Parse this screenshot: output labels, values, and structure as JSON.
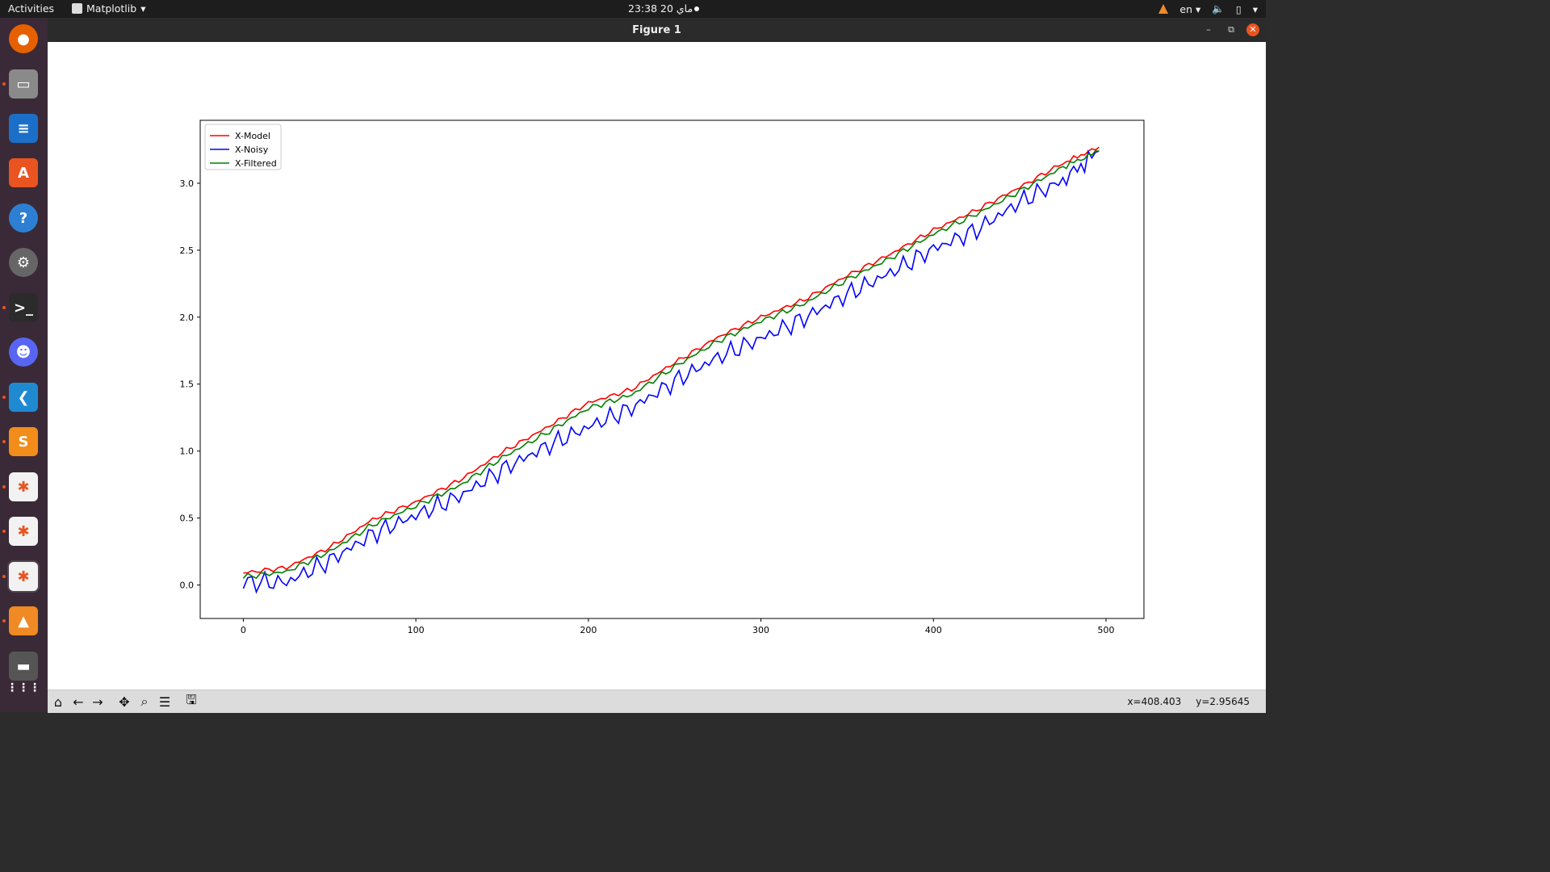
{
  "topbar": {
    "activities": "Activities",
    "app_name": "Matplotlib",
    "clock": "ماي 20  23:38",
    "language": "en"
  },
  "dock": {
    "items": [
      {
        "name": "firefox-icon"
      },
      {
        "name": "files-icon"
      },
      {
        "name": "writer-icon"
      },
      {
        "name": "software-center-icon"
      },
      {
        "name": "help-icon"
      },
      {
        "name": "settings-icon"
      },
      {
        "name": "terminal-icon"
      },
      {
        "name": "discord-icon"
      },
      {
        "name": "vscode-icon"
      },
      {
        "name": "sublime-icon"
      },
      {
        "name": "python-figure-icon"
      },
      {
        "name": "python-figure-icon"
      },
      {
        "name": "python-figure-icon"
      },
      {
        "name": "vlc-icon"
      },
      {
        "name": "drive-icon"
      },
      {
        "name": "app-grid-icon"
      }
    ]
  },
  "window": {
    "title": "Figure 1"
  },
  "toolbar": {
    "coords_x": "x=408.403",
    "coords_y": "y=2.95645"
  },
  "colors": {
    "model": "#ff0000",
    "noisy": "#0000ff",
    "filtered": "#008000"
  },
  "chart_data": {
    "type": "line",
    "title": "",
    "xlabel": "",
    "ylabel": "",
    "xlim": [
      -25,
      522
    ],
    "ylim": [
      -0.25,
      3.47
    ],
    "xticks": [
      0,
      100,
      200,
      300,
      400,
      500
    ],
    "yticks": [
      0.0,
      0.5,
      1.0,
      1.5,
      2.0,
      2.5,
      3.0
    ],
    "xtick_labels": [
      "0",
      "100",
      "200",
      "300",
      "400",
      "500"
    ],
    "ytick_labels": [
      "0.0",
      "0.5",
      "1.0",
      "1.5",
      "2.0",
      "2.5",
      "3.0"
    ],
    "legend_position": "top-left",
    "grid": false,
    "series": [
      {
        "name": "X-Model",
        "color": "#ff0000",
        "x": [
          0,
          25,
          50,
          75,
          100,
          125,
          150,
          175,
          200,
          225,
          250,
          275,
          300,
          325,
          350,
          375,
          400,
          425,
          450,
          475,
          496
        ],
        "y": [
          0.09,
          0.13,
          0.28,
          0.49,
          0.62,
          0.78,
          0.99,
          1.17,
          1.36,
          1.46,
          1.66,
          1.85,
          2.0,
          2.13,
          2.31,
          2.47,
          2.65,
          2.8,
          2.97,
          3.15,
          3.27
        ]
      },
      {
        "name": "X-Noisy",
        "color": "#0000ff",
        "x": [
          0,
          25,
          50,
          75,
          100,
          125,
          150,
          175,
          200,
          225,
          250,
          275,
          300,
          325,
          350,
          375,
          400,
          425,
          450,
          475,
          496
        ],
        "y": [
          0.02,
          0.02,
          0.18,
          0.38,
          0.52,
          0.66,
          0.86,
          1.03,
          1.18,
          1.32,
          1.52,
          1.7,
          1.84,
          1.99,
          2.17,
          2.33,
          2.51,
          2.65,
          2.86,
          3.02,
          3.24
        ]
      },
      {
        "name": "X-Filtered",
        "color": "#008000",
        "x": [
          0,
          25,
          50,
          75,
          100,
          125,
          150,
          175,
          200,
          225,
          250,
          275,
          300,
          325,
          350,
          375,
          400,
          425,
          450,
          475,
          496
        ],
        "y": [
          0.06,
          0.1,
          0.25,
          0.45,
          0.59,
          0.74,
          0.95,
          1.13,
          1.32,
          1.42,
          1.63,
          1.82,
          1.97,
          2.1,
          2.28,
          2.44,
          2.62,
          2.77,
          2.94,
          3.12,
          3.24
        ]
      }
    ]
  }
}
